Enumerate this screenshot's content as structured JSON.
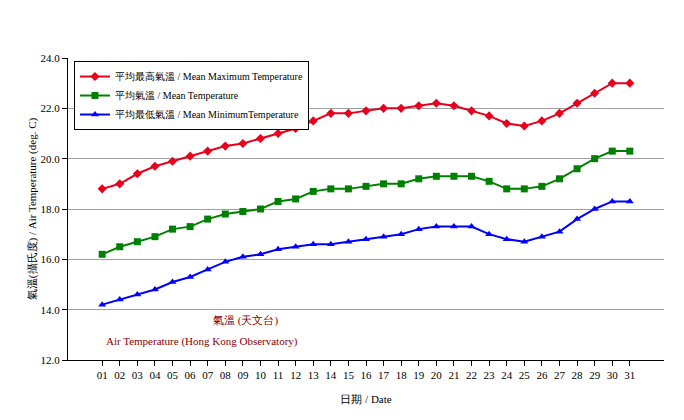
{
  "chart_data": {
    "type": "line",
    "x_label": "日期 / Date",
    "y_label": "氣溫(攝氏度) / Air Temperature (deg. C)",
    "annotations": [
      "氣溫 (天文台)",
      "Air Temperature (Hong Kong Observatory)"
    ],
    "categories": [
      "01",
      "02",
      "03",
      "04",
      "05",
      "06",
      "07",
      "08",
      "09",
      "10",
      "11",
      "12",
      "13",
      "14",
      "15",
      "16",
      "17",
      "18",
      "19",
      "20",
      "21",
      "22",
      "23",
      "24",
      "25",
      "26",
      "27",
      "28",
      "29",
      "30",
      "31"
    ],
    "series": [
      {
        "name": "平均最高氣溫 / Mean Maximum Temperature",
        "color": "#e8001c",
        "marker": "diamond",
        "values": [
          18.8,
          19.0,
          19.4,
          19.7,
          19.9,
          20.1,
          20.3,
          20.5,
          20.6,
          20.8,
          21.0,
          21.2,
          21.5,
          21.8,
          21.8,
          21.9,
          22.0,
          22.0,
          22.1,
          22.2,
          22.1,
          21.9,
          21.7,
          21.4,
          21.3,
          21.5,
          21.8,
          22.2,
          22.6,
          23.0,
          23.0
        ]
      },
      {
        "name": "平均氣溫 / Mean Temperature",
        "color": "#008000",
        "marker": "square",
        "values": [
          16.2,
          16.5,
          16.7,
          16.9,
          17.2,
          17.3,
          17.6,
          17.8,
          17.9,
          18.0,
          18.3,
          18.4,
          18.7,
          18.8,
          18.8,
          18.9,
          19.0,
          19.0,
          19.2,
          19.3,
          19.3,
          19.3,
          19.1,
          18.8,
          18.8,
          18.9,
          19.2,
          19.6,
          20.0,
          20.3,
          20.3
        ]
      },
      {
        "name": "平均最低氣溫 / Mean MinimumTemperature",
        "color": "#0000ff",
        "marker": "triangle",
        "values": [
          14.2,
          14.4,
          14.6,
          14.8,
          15.1,
          15.3,
          15.6,
          15.9,
          16.1,
          16.2,
          16.4,
          16.5,
          16.6,
          16.6,
          16.7,
          16.8,
          16.9,
          17.0,
          17.2,
          17.3,
          17.3,
          17.3,
          17.0,
          16.8,
          16.7,
          16.9,
          17.1,
          17.6,
          18.0,
          18.3,
          18.3
        ]
      }
    ],
    "ylim": [
      12,
      24
    ],
    "yticks": [
      {
        "value": 12,
        "label": "12.0"
      },
      {
        "value": 14,
        "label": "14.0"
      },
      {
        "value": 16,
        "label": "16.0"
      },
      {
        "value": 18,
        "label": "18.0"
      },
      {
        "value": 20,
        "label": "20.0"
      },
      {
        "value": 22,
        "label": "22.0"
      },
      {
        "value": 24,
        "label": "24.0"
      }
    ],
    "grid": true,
    "legend": "upper left"
  }
}
